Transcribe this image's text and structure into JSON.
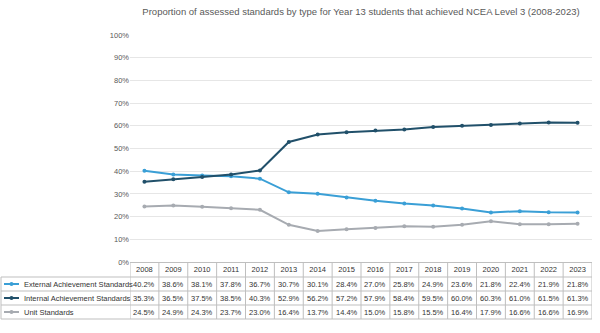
{
  "chart_data": {
    "type": "line",
    "title": "Proportion of assessed standards by type for Year 13 students that achieved NCEA Level 3 (2008-2023)",
    "categories": [
      "2008",
      "2009",
      "2010",
      "2011",
      "2012",
      "2013",
      "2014",
      "2015",
      "2016",
      "2017",
      "2018",
      "2019",
      "2020",
      "2021",
      "2022",
      "2023"
    ],
    "series": [
      {
        "name": "External Achievement Standards",
        "color": "#3a9fd6",
        "marker": "circle",
        "values": [
          40.2,
          38.6,
          38.1,
          37.8,
          36.7,
          30.7,
          30.1,
          28.4,
          27.0,
          25.8,
          24.9,
          23.6,
          21.8,
          22.4,
          21.9,
          21.8
        ],
        "value_labels": [
          "40.2%",
          "38.6%",
          "38.1%",
          "37.8%",
          "36.7%",
          "30.7%",
          "30.1%",
          "28.4%",
          "27.0%",
          "25.8%",
          "24.9%",
          "23.6%",
          "21.8%",
          "22.4%",
          "21.9%",
          "21.8%"
        ]
      },
      {
        "name": "Internal Achievement Standards",
        "color": "#21506a",
        "marker": "circle",
        "values": [
          35.3,
          36.5,
          37.5,
          38.5,
          40.3,
          52.9,
          56.2,
          57.2,
          57.9,
          58.4,
          59.5,
          60.0,
          60.3,
          61.0,
          61.5,
          61.3
        ],
        "value_labels": [
          "35.3%",
          "36.5%",
          "37.5%",
          "38.5%",
          "40.3%",
          "52.9%",
          "56.2%",
          "57.2%",
          "57.9%",
          "58.4%",
          "59.5%",
          "60.0%",
          "60.3%",
          "61.0%",
          "61.5%",
          "61.3%"
        ]
      },
      {
        "name": "Unit Standards",
        "color": "#a7abb1",
        "marker": "circle",
        "values": [
          24.5,
          24.9,
          24.3,
          23.7,
          23.0,
          16.4,
          13.7,
          14.4,
          15.0,
          15.8,
          15.5,
          16.4,
          17.9,
          16.6,
          16.6,
          16.9
        ],
        "value_labels": [
          "24.5%",
          "24.9%",
          "24.3%",
          "23.7%",
          "23.0%",
          "16.4%",
          "13.7%",
          "14.4%",
          "15.0%",
          "15.8%",
          "15.5%",
          "16.4%",
          "17.9%",
          "16.6%",
          "16.6%",
          "16.9%"
        ]
      }
    ],
    "ylim": [
      0,
      100
    ],
    "yticks": [
      {
        "value": 0,
        "label": "0%"
      },
      {
        "value": 10,
        "label": "10%"
      },
      {
        "value": 20,
        "label": "20%"
      },
      {
        "value": 30,
        "label": "30%"
      },
      {
        "value": 40,
        "label": "40%"
      },
      {
        "value": 50,
        "label": "50%"
      },
      {
        "value": 60,
        "label": "60%"
      },
      {
        "value": 70,
        "label": "70%"
      },
      {
        "value": 80,
        "label": "80%"
      },
      {
        "value": 90,
        "label": "90%"
      },
      {
        "value": 100,
        "label": "100%"
      }
    ],
    "grid": true
  }
}
